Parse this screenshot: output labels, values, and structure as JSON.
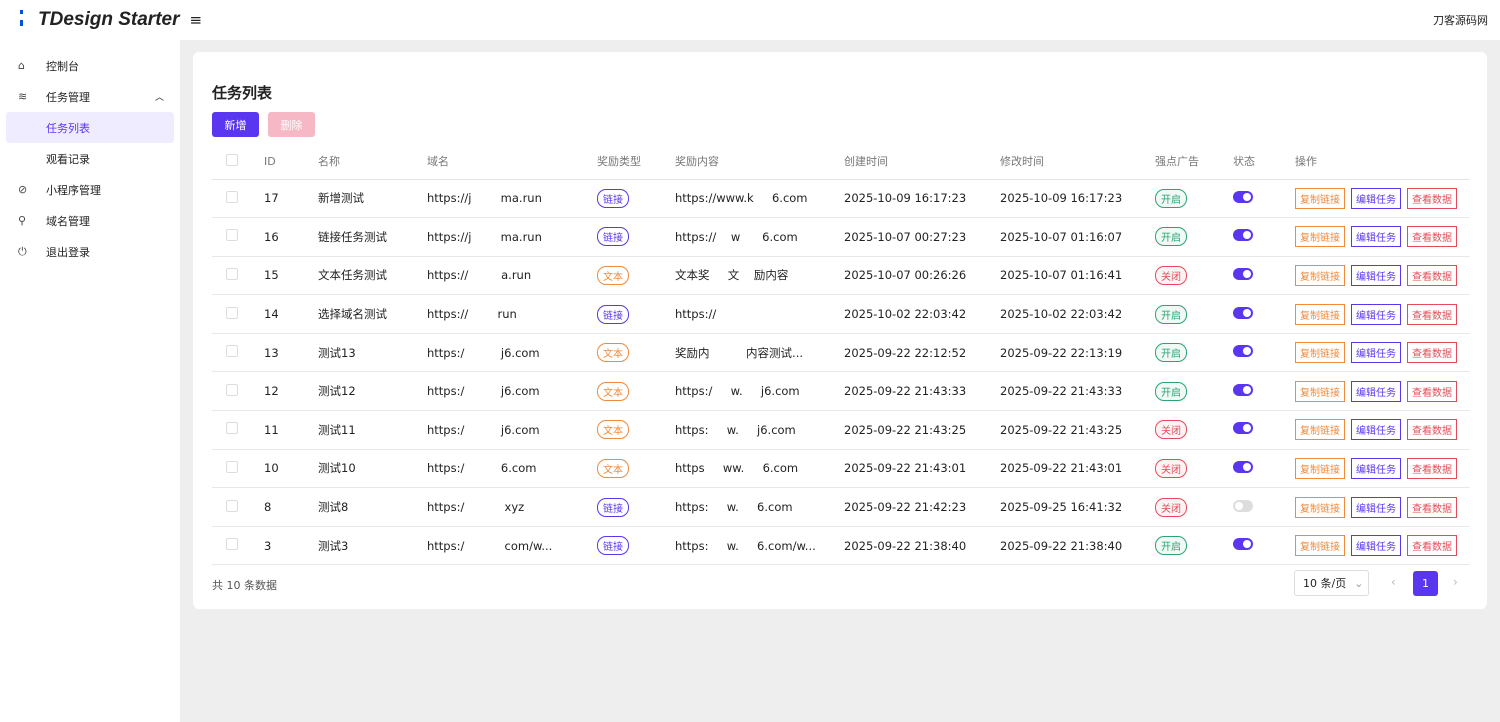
{
  "header": {
    "title": "TDesign Starter",
    "user": "刀客源码网"
  },
  "sidebar": {
    "items": [
      "控制台",
      "任务管理",
      "任务列表",
      "观看记录",
      "小程序管理",
      "域名管理",
      "退出登录"
    ]
  },
  "card": {
    "title": "任务列表",
    "buttons": [
      "新增",
      "删除"
    ]
  },
  "table": {
    "columns": [
      "ID",
      "名称",
      "域名",
      "奖励类型",
      "奖励内容",
      "创建时间",
      "修改时间",
      "强点广告",
      "状态",
      "操作"
    ],
    "actions": [
      "复制链接",
      "编辑任务",
      "查看数据"
    ],
    "rows": [
      [
        17,
        "新增测试",
        "https://j        ma.run",
        "链接",
        "https://www.k     6.com",
        "2025-10-09 16:17:23",
        "2025-10-09 16:17:23",
        "开启",
        true
      ],
      [
        16,
        "链接任务测试",
        "https://j        ma.run",
        "链接",
        "https://    w      6.com",
        "2025-10-07 00:27:23",
        "2025-10-07 01:16:07",
        "开启",
        true
      ],
      [
        15,
        "文本任务测试",
        "https://         a.run",
        "文本",
        "文本奖     文    励内容",
        "2025-10-07 00:26:26",
        "2025-10-07 01:16:41",
        "关闭",
        true
      ],
      [
        14,
        "选择域名测试",
        "https://        run",
        "链接",
        "https://",
        "2025-10-02 22:03:42",
        "2025-10-02 22:03:42",
        "开启",
        true
      ],
      [
        13,
        "测试13",
        "https:/          j6.com",
        "文本",
        "奖励内          内容测试...",
        "2025-09-22 22:12:52",
        "2025-09-22 22:13:19",
        "开启",
        true
      ],
      [
        12,
        "测试12",
        "https:/          j6.com",
        "文本",
        "https:/     w.     j6.com",
        "2025-09-22 21:43:33",
        "2025-09-22 21:43:33",
        "开启",
        true
      ],
      [
        11,
        "测试11",
        "https:/          j6.com",
        "文本",
        "https:     w.     j6.com",
        "2025-09-22 21:43:25",
        "2025-09-22 21:43:25",
        "关闭",
        true
      ],
      [
        10,
        "测试10",
        "https:/          6.com",
        "文本",
        "https     ww.     6.com",
        "2025-09-22 21:43:01",
        "2025-09-22 21:43:01",
        "关闭",
        true
      ],
      [
        8,
        "测试8",
        "https:/           xyz",
        "链接",
        "https:     w.     6.com",
        "2025-09-22 21:42:23",
        "2025-09-25 16:41:32",
        "关闭",
        false
      ],
      [
        3,
        "测试3",
        "https:/           com/w...",
        "链接",
        "https:     w.     6.com/w...",
        "2025-09-22 21:38:40",
        "2025-09-22 21:38:40",
        "开启",
        true
      ]
    ]
  },
  "footer": {
    "total": "共 10 条数据",
    "page_size": "10 条/页",
    "page": "1"
  }
}
